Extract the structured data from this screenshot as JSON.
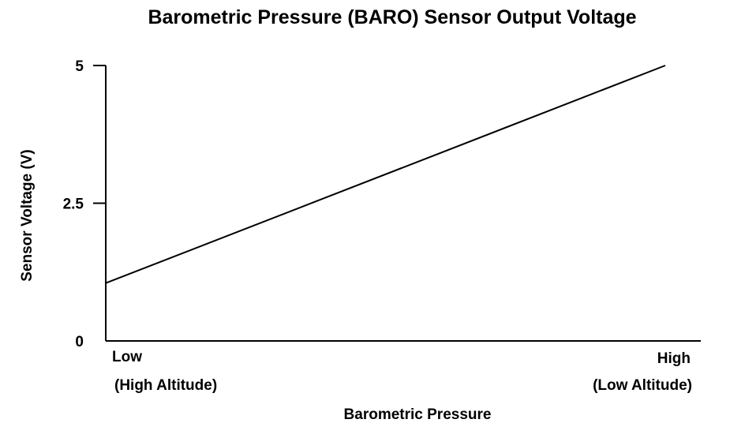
{
  "chart_data": {
    "type": "line",
    "title": "Barometric Pressure (BARO) Sensor Output Voltage",
    "xlabel": "Barometric Pressure",
    "ylabel": "Sensor Voltage (V)",
    "x_tick_labels": [
      {
        "main": "Low",
        "sub": "(High Altitude)"
      },
      {
        "main": "High",
        "sub": "(Low Altitude)"
      }
    ],
    "y_ticks": [
      0,
      2.5,
      5
    ],
    "y_tick_labels": [
      "0",
      "2.5",
      "5"
    ],
    "ylim": [
      0,
      5
    ],
    "xlim": [
      0,
      1
    ],
    "series": [
      {
        "x": [
          0,
          1
        ],
        "values": [
          1.05,
          5
        ]
      }
    ],
    "grid": false
  },
  "colors": {
    "line": "#000000",
    "axis": "#000000"
  }
}
